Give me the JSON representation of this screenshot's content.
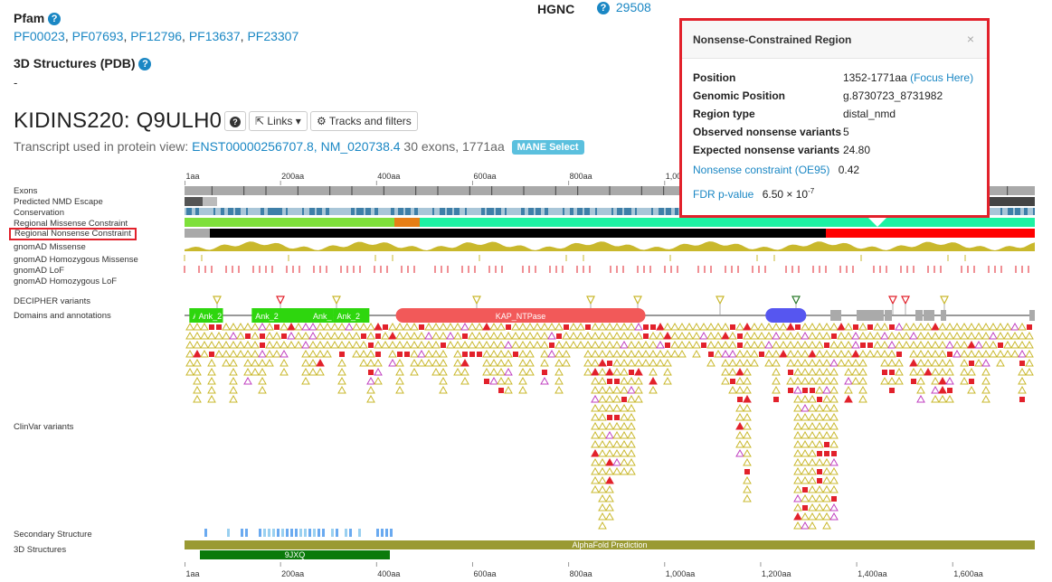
{
  "pfam": {
    "heading": "Pfam",
    "links": [
      "PF00023",
      "PF07693",
      "PF12796",
      "PF13637",
      "PF23307"
    ]
  },
  "hgnc": {
    "label": "HGNC",
    "id": "29508"
  },
  "pdb": {
    "heading": "3D Structures (PDB)",
    "value": "-"
  },
  "protein": {
    "title": "KIDINS220: Q9ULH0",
    "links_label": "Links",
    "tracks_label": "Tracks and filters"
  },
  "transcript": {
    "prefix": "Transcript used in protein view:",
    "ensembl": "ENST00000256707.8,",
    "refseq": "NM_020738.4",
    "suffix": "30 exons, 1771aa",
    "badge": "MANE Select"
  },
  "tracks": {
    "exons": "Exons",
    "nmd": "Predicted NMD Escape",
    "conservation": "Conservation",
    "missense_constraint": "Regional Missense Constraint",
    "nonsense_constraint": "Regional Nonsense Constraint",
    "gnomad_missense": "gnomAD Missense",
    "gnomad_hom_missense": "gnomAD Homozygous Missense",
    "gnomad_lof": "gnomAD LoF",
    "gnomad_hom_lof": "gnomAD Homozygous LoF",
    "decipher": "DECIPHER variants",
    "domains": "Domains and annotations",
    "clinvar": "ClinVar variants",
    "secondary": "Secondary Structure",
    "structures": "3D Structures"
  },
  "axis": {
    "ticks": [
      "1aa",
      "200aa",
      "400aa",
      "600aa",
      "800aa",
      "1,000aa",
      "1,200aa",
      "1,400aa",
      "1,600aa"
    ],
    "max_aa": 1771
  },
  "domains": [
    {
      "name": "Ank",
      "start": 10,
      "end": 80
    },
    {
      "name": "Ank_2",
      "start": 22,
      "end": 80
    },
    {
      "name": "Ank_2",
      "start": 140,
      "end": 260
    },
    {
      "name": "Ank_",
      "start": 260,
      "end": 310
    },
    {
      "name": "Ank_2",
      "start": 310,
      "end": 385
    },
    {
      "name": "KAP_NTPase",
      "start": 440,
      "end": 960
    },
    {
      "name": "",
      "start": 1210,
      "end": 1295
    }
  ],
  "structures": {
    "alphafold": "AlphaFold Prediction",
    "pdb_entry": "9JXQ"
  },
  "popover": {
    "title": "Nonsense-Constrained Region",
    "close": "×",
    "rows": [
      {
        "key": "Position",
        "value": "1352-1771aa",
        "link": "(Focus Here)"
      },
      {
        "key": "Genomic Position",
        "value": "g.8730723_8731982"
      },
      {
        "key": "Region type",
        "value": "distal_nmd"
      },
      {
        "key": "Observed nonsense variants",
        "value": "5"
      },
      {
        "key": "Expected nonsense variants",
        "value": "24.80"
      }
    ],
    "oe_label": "Nonsense constraint (OE95)",
    "oe_value": "0.42",
    "fdr_label": "FDR p-value",
    "fdr_value": "6.50 × 10",
    "fdr_exp": "-7"
  },
  "colors": {
    "link": "#1a87c4",
    "highlight_border": "#e2212b",
    "missense_green": "#7ee03a",
    "missense_orange": "#e67e15",
    "missense_teal": "#1df2a3",
    "nonsense_black": "#000000",
    "nonsense_red": "#ff0000",
    "gnomad_olive": "#c9b82c",
    "domain_green": "#2ed60e",
    "domain_red": "#f25959",
    "domain_blue": "#5656f0",
    "alphafold": "#9a9a33",
    "pdb_bar": "#0b7a0b"
  }
}
